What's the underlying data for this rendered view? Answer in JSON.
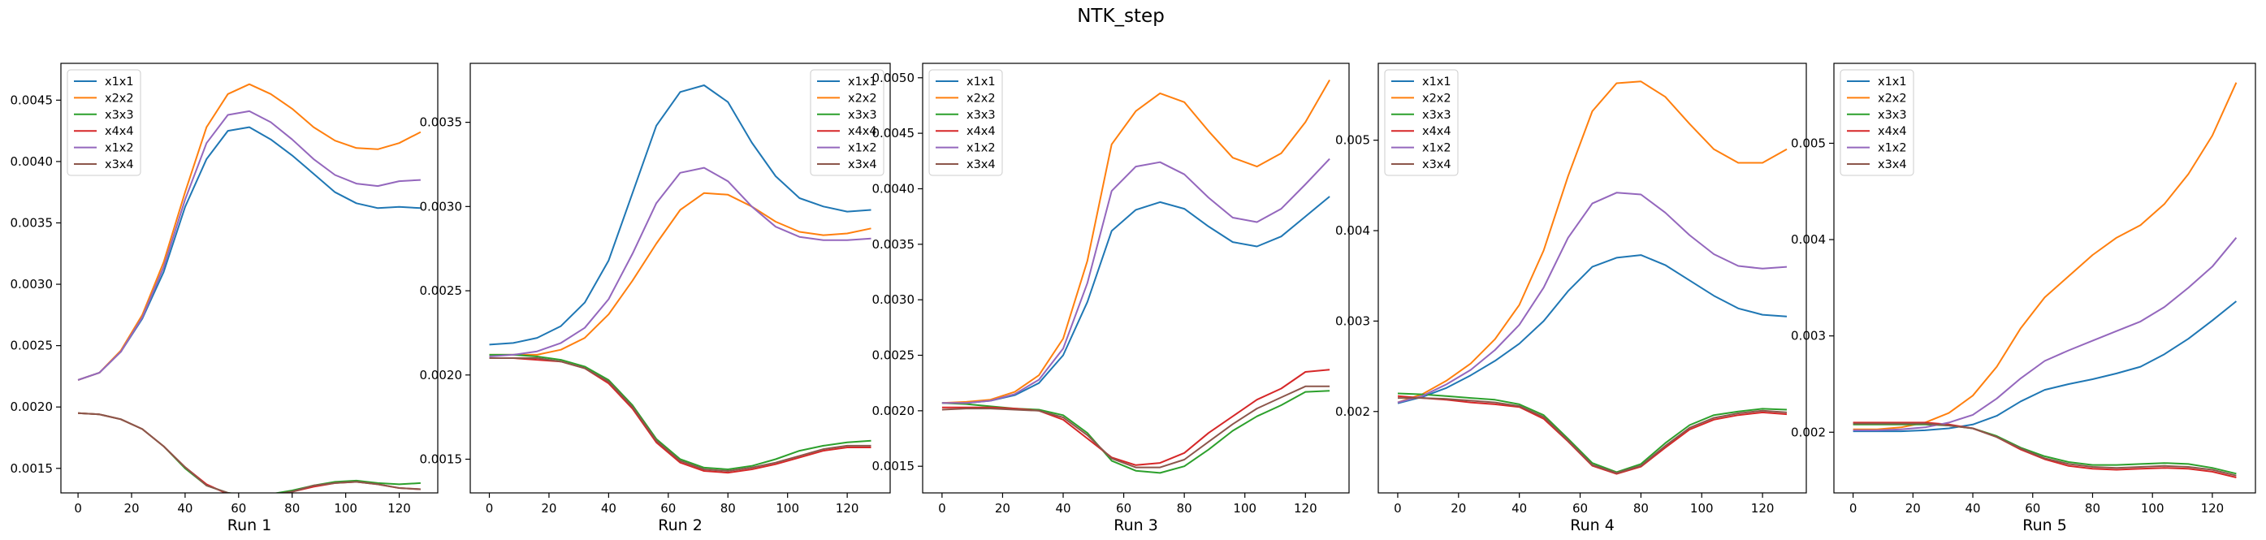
{
  "figure": {
    "title": "NTK_step"
  },
  "legend_labels": [
    "x1x1",
    "x2x2",
    "x3x3",
    "x4x4",
    "x1x2",
    "x3x4"
  ],
  "colors": {
    "x1x1": "#1f77b4",
    "x2x2": "#ff7f0e",
    "x3x3": "#2ca02c",
    "x4x4": "#d62728",
    "x1x2": "#9467bd",
    "x3x4": "#8c564b"
  },
  "chart_data": [
    {
      "type": "line",
      "xlabel": "Run 1",
      "xlim": [
        -6.4,
        134.4
      ],
      "ylim": [
        0.0013,
        0.0048
      ],
      "xticks": [
        0,
        20,
        40,
        60,
        80,
        100,
        120
      ],
      "yticks": [
        0.0015,
        0.002,
        0.0025,
        0.003,
        0.0035,
        0.004,
        0.0045
      ],
      "yticklabels": [
        "0.0015",
        "0.0020",
        "0.0025",
        "0.0030",
        "0.0035",
        "0.0040",
        "0.0045"
      ],
      "legend_loc": "upper-left",
      "x": [
        0,
        8,
        16,
        24,
        32,
        40,
        48,
        56,
        64,
        72,
        80,
        88,
        96,
        104,
        112,
        120,
        128
      ],
      "series": [
        {
          "name": "x1x1",
          "values": [
            0.00222,
            0.00228,
            0.00245,
            0.00272,
            0.0031,
            0.00363,
            0.00402,
            0.00425,
            0.00428,
            0.00418,
            0.00405,
            0.0039,
            0.00375,
            0.00366,
            0.00362,
            0.00363,
            0.00362
          ]
        },
        {
          "name": "x2x2",
          "values": [
            0.00222,
            0.00228,
            0.00246,
            0.00275,
            0.00318,
            0.00375,
            0.00428,
            0.00455,
            0.00463,
            0.00455,
            0.00443,
            0.00428,
            0.00417,
            0.00411,
            0.0041,
            0.00415,
            0.00424
          ]
        },
        {
          "name": "x3x3",
          "values": [
            0.00195,
            0.00194,
            0.0019,
            0.00182,
            0.00168,
            0.0015,
            0.00136,
            0.0013,
            0.00128,
            0.00129,
            0.00132,
            0.00136,
            0.00139,
            0.0014,
            0.00138,
            0.00137,
            0.00138
          ]
        },
        {
          "name": "x4x4",
          "values": [
            0.00195,
            0.00194,
            0.0019,
            0.00182,
            0.00168,
            0.00151,
            0.00137,
            0.00129,
            0.00127,
            0.00128,
            0.00131,
            0.00135,
            0.00138,
            0.00139,
            0.00137,
            0.00134,
            0.00133
          ]
        },
        {
          "name": "x1x2",
          "values": [
            0.00222,
            0.00228,
            0.00245,
            0.00273,
            0.00314,
            0.00369,
            0.00415,
            0.00438,
            0.00441,
            0.00432,
            0.00418,
            0.00402,
            0.00389,
            0.00382,
            0.0038,
            0.00384,
            0.00385
          ]
        },
        {
          "name": "x3x4",
          "values": [
            0.00195,
            0.00194,
            0.0019,
            0.00182,
            0.00168,
            0.00151,
            0.00136,
            0.0013,
            0.00127,
            0.00128,
            0.00131,
            0.00136,
            0.00138,
            0.00139,
            0.00137,
            0.00134,
            0.00133
          ]
        }
      ]
    },
    {
      "type": "line",
      "xlabel": "Run 2",
      "xlim": [
        -6.4,
        134.4
      ],
      "ylim": [
        0.0013,
        0.00385
      ],
      "xticks": [
        0,
        20,
        40,
        60,
        80,
        100,
        120
      ],
      "yticks": [
        0.0015,
        0.002,
        0.0025,
        0.003,
        0.0035
      ],
      "yticklabels": [
        "0.0015",
        "0.0020",
        "0.0025",
        "0.0030",
        "0.0035"
      ],
      "legend_loc": "upper-right",
      "x": [
        0,
        8,
        16,
        24,
        32,
        40,
        48,
        56,
        64,
        72,
        80,
        88,
        96,
        104,
        112,
        120,
        128
      ],
      "series": [
        {
          "name": "x1x1",
          "values": [
            0.00218,
            0.00219,
            0.00222,
            0.00229,
            0.00243,
            0.00268,
            0.00308,
            0.00348,
            0.00368,
            0.00372,
            0.00362,
            0.00338,
            0.00318,
            0.00305,
            0.003,
            0.00297,
            0.00298
          ]
        },
        {
          "name": "x2x2",
          "values": [
            0.00212,
            0.00212,
            0.00212,
            0.00215,
            0.00222,
            0.00236,
            0.00256,
            0.00278,
            0.00298,
            0.00308,
            0.00307,
            0.003,
            0.00291,
            0.00285,
            0.00283,
            0.00284,
            0.00287
          ]
        },
        {
          "name": "x3x3",
          "values": [
            0.00212,
            0.00212,
            0.00211,
            0.00209,
            0.00205,
            0.00197,
            0.00182,
            0.00162,
            0.0015,
            0.00145,
            0.00144,
            0.00146,
            0.0015,
            0.00155,
            0.00158,
            0.0016,
            0.00161
          ]
        },
        {
          "name": "x4x4",
          "values": [
            0.0021,
            0.0021,
            0.00209,
            0.00208,
            0.00204,
            0.00195,
            0.0018,
            0.0016,
            0.00148,
            0.00143,
            0.00142,
            0.00144,
            0.00147,
            0.00151,
            0.00155,
            0.00157,
            0.00157
          ]
        },
        {
          "name": "x1x2",
          "values": [
            0.00211,
            0.00212,
            0.00214,
            0.00219,
            0.00228,
            0.00245,
            0.00272,
            0.00302,
            0.0032,
            0.00323,
            0.00315,
            0.003,
            0.00288,
            0.00282,
            0.0028,
            0.0028,
            0.00281
          ]
        },
        {
          "name": "x3x4",
          "values": [
            0.0021,
            0.0021,
            0.0021,
            0.00208,
            0.00204,
            0.00196,
            0.00181,
            0.00161,
            0.00149,
            0.00144,
            0.00143,
            0.00145,
            0.00148,
            0.00152,
            0.00156,
            0.00158,
            0.00158
          ]
        }
      ]
    },
    {
      "type": "line",
      "xlabel": "Run 3",
      "xlim": [
        -6.4,
        134.4
      ],
      "ylim": [
        0.00126,
        0.00513
      ],
      "xticks": [
        0,
        20,
        40,
        60,
        80,
        100,
        120
      ],
      "yticks": [
        0.0015,
        0.002,
        0.0025,
        0.003,
        0.0035,
        0.004,
        0.0045,
        0.005
      ],
      "yticklabels": [
        "0.0015",
        "0.0020",
        "0.0025",
        "0.0030",
        "0.0035",
        "0.0040",
        "0.0045",
        "0.0050"
      ],
      "legend_loc": "upper-left",
      "x": [
        0,
        8,
        16,
        24,
        32,
        40,
        48,
        56,
        64,
        72,
        80,
        88,
        96,
        104,
        112,
        120,
        128
      ],
      "series": [
        {
          "name": "x1x1",
          "values": [
            0.00207,
            0.00207,
            0.00209,
            0.00214,
            0.00225,
            0.0025,
            0.00298,
            0.00362,
            0.00381,
            0.00388,
            0.00382,
            0.00366,
            0.00352,
            0.00348,
            0.00357,
            0.00375,
            0.00393
          ]
        },
        {
          "name": "x2x2",
          "values": [
            0.00207,
            0.00208,
            0.0021,
            0.00217,
            0.00232,
            0.00265,
            0.00335,
            0.0044,
            0.0047,
            0.00486,
            0.00478,
            0.00452,
            0.00428,
            0.0042,
            0.00432,
            0.0046,
            0.00498
          ]
        },
        {
          "name": "x3x3",
          "values": [
            0.00207,
            0.00206,
            0.00204,
            0.00202,
            0.00201,
            0.00196,
            0.0018,
            0.00155,
            0.00146,
            0.00144,
            0.0015,
            0.00165,
            0.00182,
            0.00195,
            0.00205,
            0.00217,
            0.00218
          ]
        },
        {
          "name": "x4x4",
          "values": [
            0.00203,
            0.00203,
            0.00203,
            0.00202,
            0.002,
            0.00192,
            0.00175,
            0.00158,
            0.00151,
            0.00153,
            0.00162,
            0.0018,
            0.00195,
            0.0021,
            0.0022,
            0.00235,
            0.00237
          ]
        },
        {
          "name": "x1x2",
          "values": [
            0.00207,
            0.00207,
            0.00209,
            0.00215,
            0.00228,
            0.00256,
            0.00315,
            0.00398,
            0.0042,
            0.00424,
            0.00413,
            0.00392,
            0.00374,
            0.0037,
            0.00382,
            0.00404,
            0.00427
          ]
        },
        {
          "name": "x3x4",
          "values": [
            0.00201,
            0.00202,
            0.00202,
            0.00201,
            0.002,
            0.00194,
            0.00178,
            0.00157,
            0.00149,
            0.00149,
            0.00156,
            0.00172,
            0.00188,
            0.00202,
            0.00212,
            0.00222,
            0.00222
          ]
        }
      ]
    },
    {
      "type": "line",
      "xlabel": "Run 4",
      "xlim": [
        -6.4,
        134.4
      ],
      "ylim": [
        0.0011,
        0.00585
      ],
      "xticks": [
        0,
        20,
        40,
        60,
        80,
        100,
        120
      ],
      "yticks": [
        0.002,
        0.003,
        0.004,
        0.005
      ],
      "yticklabels": [
        "0.002",
        "0.003",
        "0.004",
        "0.005"
      ],
      "legend_loc": "upper-left",
      "x": [
        0,
        8,
        16,
        24,
        32,
        40,
        48,
        56,
        64,
        72,
        80,
        88,
        96,
        104,
        112,
        120,
        128
      ],
      "series": [
        {
          "name": "x1x1",
          "values": [
            0.00209,
            0.00216,
            0.00226,
            0.0024,
            0.00256,
            0.00275,
            0.003,
            0.00333,
            0.0036,
            0.0037,
            0.00373,
            0.00362,
            0.00345,
            0.00328,
            0.00314,
            0.00307,
            0.00305
          ]
        },
        {
          "name": "x2x2",
          "values": [
            0.0021,
            0.00219,
            0.00234,
            0.00253,
            0.0028,
            0.00318,
            0.00378,
            0.0046,
            0.00532,
            0.00563,
            0.00565,
            0.00548,
            0.00518,
            0.0049,
            0.00475,
            0.00475,
            0.0049
          ]
        },
        {
          "name": "x3x3",
          "values": [
            0.0022,
            0.00219,
            0.00217,
            0.00215,
            0.00213,
            0.00208,
            0.00196,
            0.0017,
            0.00143,
            0.00133,
            0.00142,
            0.00165,
            0.00185,
            0.00196,
            0.002,
            0.00203,
            0.00202
          ]
        },
        {
          "name": "x4x4",
          "values": [
            0.00217,
            0.00215,
            0.00213,
            0.0021,
            0.00208,
            0.00205,
            0.00192,
            0.00167,
            0.0014,
            0.00131,
            0.00139,
            0.0016,
            0.0018,
            0.00191,
            0.00196,
            0.00199,
            0.00197
          ]
        },
        {
          "name": "x1x2",
          "values": [
            0.0021,
            0.00217,
            0.0023,
            0.00246,
            0.00268,
            0.00296,
            0.00337,
            0.00392,
            0.0043,
            0.00442,
            0.0044,
            0.0042,
            0.00395,
            0.00374,
            0.00361,
            0.00358,
            0.0036
          ]
        },
        {
          "name": "x3x4",
          "values": [
            0.00215,
            0.00215,
            0.00214,
            0.00212,
            0.0021,
            0.00206,
            0.00194,
            0.00168,
            0.00141,
            0.00132,
            0.0014,
            0.00162,
            0.00182,
            0.00193,
            0.00198,
            0.00201,
            0.00199
          ]
        }
      ]
    },
    {
      "type": "line",
      "xlabel": "Run 5",
      "xlim": [
        -6.4,
        134.4
      ],
      "ylim": [
        0.00137,
        0.00583
      ],
      "xticks": [
        0,
        20,
        40,
        60,
        80,
        100,
        120
      ],
      "yticks": [
        0.002,
        0.003,
        0.004,
        0.005
      ],
      "yticklabels": [
        "0.002",
        "0.003",
        "0.004",
        "0.005"
      ],
      "legend_loc": "upper-left",
      "x": [
        0,
        8,
        16,
        24,
        32,
        40,
        48,
        56,
        64,
        72,
        80,
        88,
        96,
        104,
        112,
        120,
        128
      ],
      "series": [
        {
          "name": "x1x1",
          "values": [
            0.00201,
            0.00201,
            0.00201,
            0.00202,
            0.00204,
            0.00208,
            0.00217,
            0.00232,
            0.00244,
            0.0025,
            0.00255,
            0.00261,
            0.00268,
            0.00281,
            0.00297,
            0.00316,
            0.00336
          ]
        },
        {
          "name": "x2x2",
          "values": [
            0.00203,
            0.00203,
            0.00205,
            0.0021,
            0.0022,
            0.00238,
            0.00268,
            0.00308,
            0.0034,
            0.00362,
            0.00384,
            0.00402,
            0.00415,
            0.00437,
            0.00468,
            0.00508,
            0.00563
          ]
        },
        {
          "name": "x3x3",
          "values": [
            0.00208,
            0.00208,
            0.00208,
            0.00208,
            0.00207,
            0.00204,
            0.00196,
            0.00184,
            0.00175,
            0.00169,
            0.00166,
            0.00166,
            0.00167,
            0.00168,
            0.00167,
            0.00163,
            0.00157
          ]
        },
        {
          "name": "x4x4",
          "values": [
            0.0021,
            0.0021,
            0.0021,
            0.0021,
            0.00208,
            0.00204,
            0.00195,
            0.00182,
            0.00172,
            0.00165,
            0.00162,
            0.00161,
            0.00162,
            0.00163,
            0.00162,
            0.00159,
            0.00153
          ]
        },
        {
          "name": "x1x2",
          "values": [
            0.00202,
            0.00202,
            0.00203,
            0.00205,
            0.0021,
            0.00218,
            0.00235,
            0.00256,
            0.00274,
            0.00285,
            0.00295,
            0.00305,
            0.00315,
            0.0033,
            0.0035,
            0.00372,
            0.00402
          ]
        },
        {
          "name": "x3x4",
          "values": [
            0.00209,
            0.00209,
            0.00209,
            0.00209,
            0.00207,
            0.00204,
            0.00195,
            0.00183,
            0.00173,
            0.00167,
            0.00164,
            0.00163,
            0.00164,
            0.00165,
            0.00164,
            0.00161,
            0.00155
          ]
        }
      ]
    }
  ]
}
